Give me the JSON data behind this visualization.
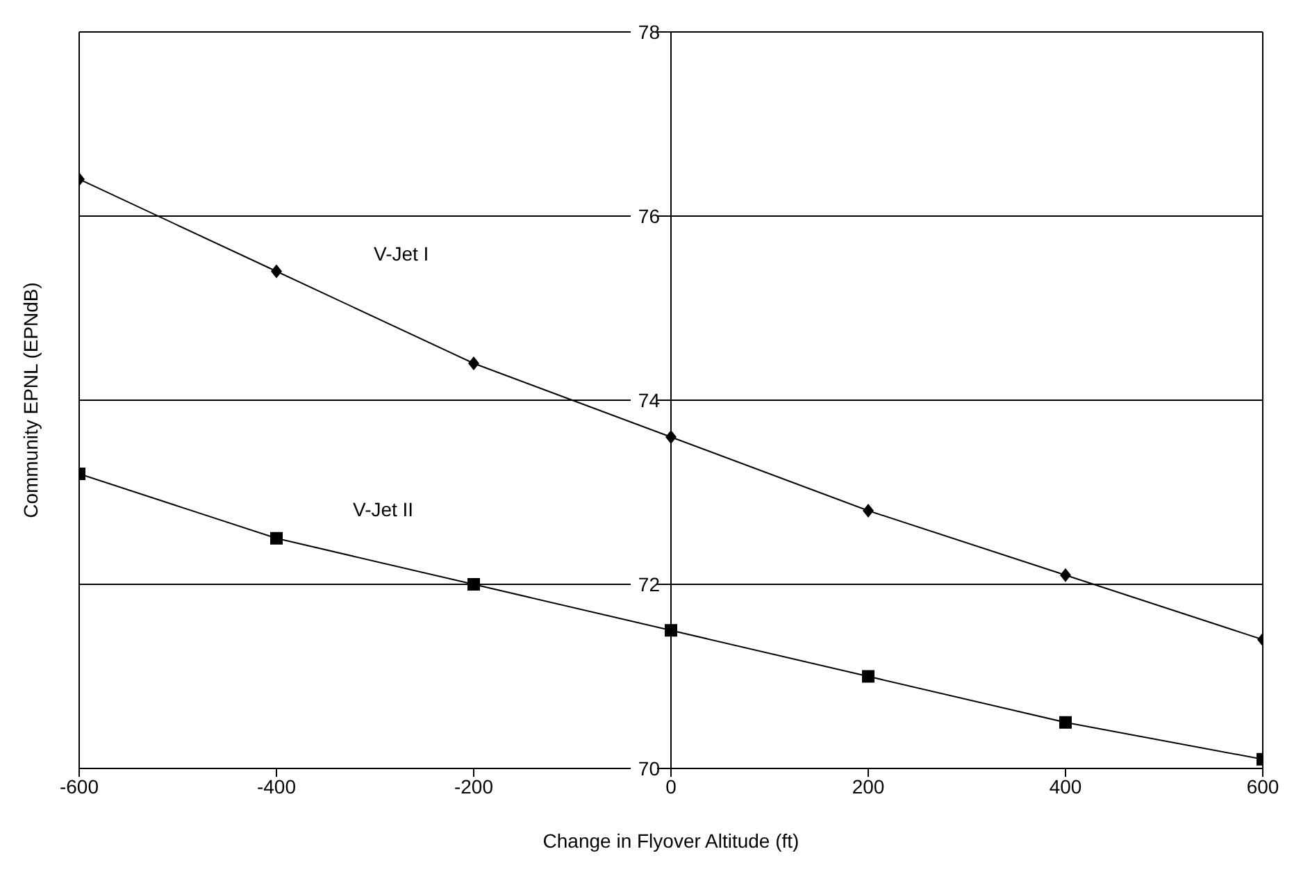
{
  "chart_data": {
    "type": "line",
    "xlabel": "Change in Flyover Altitude (ft)",
    "ylabel": "Community EPNL (EPNdB)",
    "x": [
      -600,
      -400,
      -200,
      0,
      200,
      400,
      600
    ],
    "series": [
      {
        "name": "V-Jet I",
        "color": "#000000",
        "marker": "diamond",
        "values": [
          76.4,
          75.4,
          74.4,
          73.6,
          72.8,
          72.1,
          71.4
        ]
      },
      {
        "name": "V-Jet II",
        "color": "#000000",
        "marker": "square",
        "values": [
          73.2,
          72.5,
          72.0,
          71.5,
          71.0,
          70.5,
          70.1
        ]
      }
    ],
    "xlim": [
      -600,
      600
    ],
    "xticks": [
      -600,
      -400,
      -200,
      0,
      200,
      400,
      600
    ],
    "ylim": [
      70,
      78
    ],
    "yticks": [
      70,
      72,
      74,
      76,
      78
    ],
    "grid": "y"
  }
}
